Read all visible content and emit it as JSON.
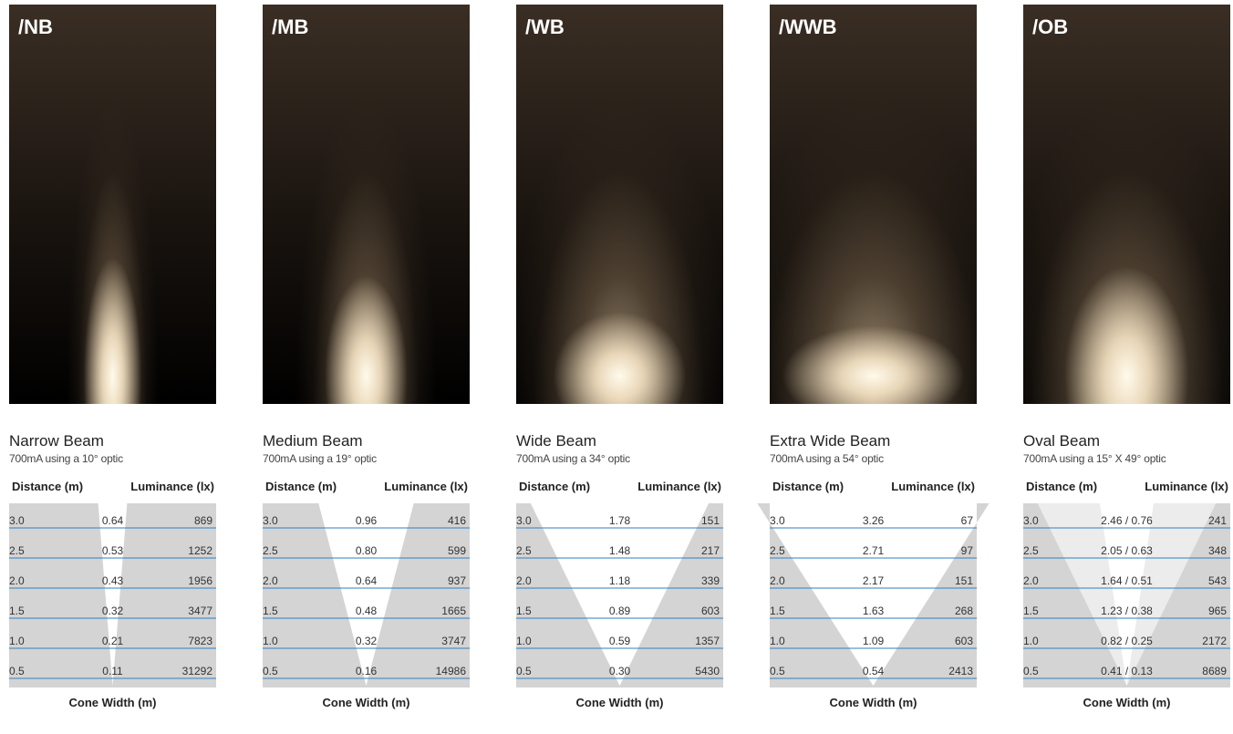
{
  "headers": {
    "distance": "Distance (m)",
    "luminance": "Luminance (lx)",
    "cone_width": "Cone Width (m)"
  },
  "colors": {
    "cone_fill": "#d4d4d4",
    "row_line": "#2f7fbf",
    "beam_light": "#f4e8d4"
  },
  "panels": [
    {
      "code": "/NB",
      "name": "Narrow Beam",
      "subtitle": "700mA using a 10° optic",
      "cone_top_half": 0.07,
      "cone_inner_top_half": 0.0,
      "rows": [
        {
          "distance": "3.0",
          "width": "0.64",
          "lux": "869"
        },
        {
          "distance": "2.5",
          "width": "0.53",
          "lux": "1252"
        },
        {
          "distance": "2.0",
          "width": "0.43",
          "lux": "1956"
        },
        {
          "distance": "1.5",
          "width": "0.32",
          "lux": "3477"
        },
        {
          "distance": "1.0",
          "width": "0.21",
          "lux": "7823"
        },
        {
          "distance": "0.5",
          "width": "0.11",
          "lux": "31292"
        }
      ]
    },
    {
      "code": "/MB",
      "name": "Medium Beam",
      "subtitle": "700mA using a 19° optic",
      "cone_top_half": 0.23,
      "cone_inner_top_half": 0.0,
      "rows": [
        {
          "distance": "3.0",
          "width": "0.96",
          "lux": "416"
        },
        {
          "distance": "2.5",
          "width": "0.80",
          "lux": "599"
        },
        {
          "distance": "2.0",
          "width": "0.64",
          "lux": "937"
        },
        {
          "distance": "1.5",
          "width": "0.48",
          "lux": "1665"
        },
        {
          "distance": "1.0",
          "width": "0.32",
          "lux": "3747"
        },
        {
          "distance": "0.5",
          "width": "0.16",
          "lux": "14986"
        }
      ]
    },
    {
      "code": "/WB",
      "name": "Wide Beam",
      "subtitle": "700mA using a 34° optic",
      "cone_top_half": 0.43,
      "cone_inner_top_half": 0.0,
      "rows": [
        {
          "distance": "3.0",
          "width": "1.78",
          "lux": "151"
        },
        {
          "distance": "2.5",
          "width": "1.48",
          "lux": "217"
        },
        {
          "distance": "2.0",
          "width": "1.18",
          "lux": "339"
        },
        {
          "distance": "1.5",
          "width": "0.89",
          "lux": "603"
        },
        {
          "distance": "1.0",
          "width": "0.59",
          "lux": "1357"
        },
        {
          "distance": "0.5",
          "width": "0.30",
          "lux": "5430"
        }
      ]
    },
    {
      "code": "/WWB",
      "name": "Extra Wide Beam",
      "subtitle": "700mA using a 54° optic",
      "cone_top_half": 0.56,
      "cone_inner_top_half": 0.0,
      "rows": [
        {
          "distance": "3.0",
          "width": "3.26",
          "lux": "67"
        },
        {
          "distance": "2.5",
          "width": "2.71",
          "lux": "97"
        },
        {
          "distance": "2.0",
          "width": "2.17",
          "lux": "151"
        },
        {
          "distance": "1.5",
          "width": "1.63",
          "lux": "268"
        },
        {
          "distance": "1.0",
          "width": "1.09",
          "lux": "603"
        },
        {
          "distance": "0.5",
          "width": "0.54",
          "lux": "2413"
        }
      ]
    },
    {
      "code": "/OB",
      "name": "Oval Beam",
      "subtitle": "700mA using a 15° X 49° optic",
      "cone_top_half": 0.43,
      "cone_inner_top_half": 0.13,
      "rows": [
        {
          "distance": "3.0",
          "width": "2.46 / 0.76",
          "lux": "241"
        },
        {
          "distance": "2.5",
          "width": "2.05 / 0.63",
          "lux": "348"
        },
        {
          "distance": "2.0",
          "width": "1.64 / 0.51",
          "lux": "543"
        },
        {
          "distance": "1.5",
          "width": "1.23 / 0.38",
          "lux": "965"
        },
        {
          "distance": "1.0",
          "width": "0.82 / 0.25",
          "lux": "2172"
        },
        {
          "distance": "0.5",
          "width": "0.41 / 0.13",
          "lux": "8689"
        }
      ]
    }
  ]
}
